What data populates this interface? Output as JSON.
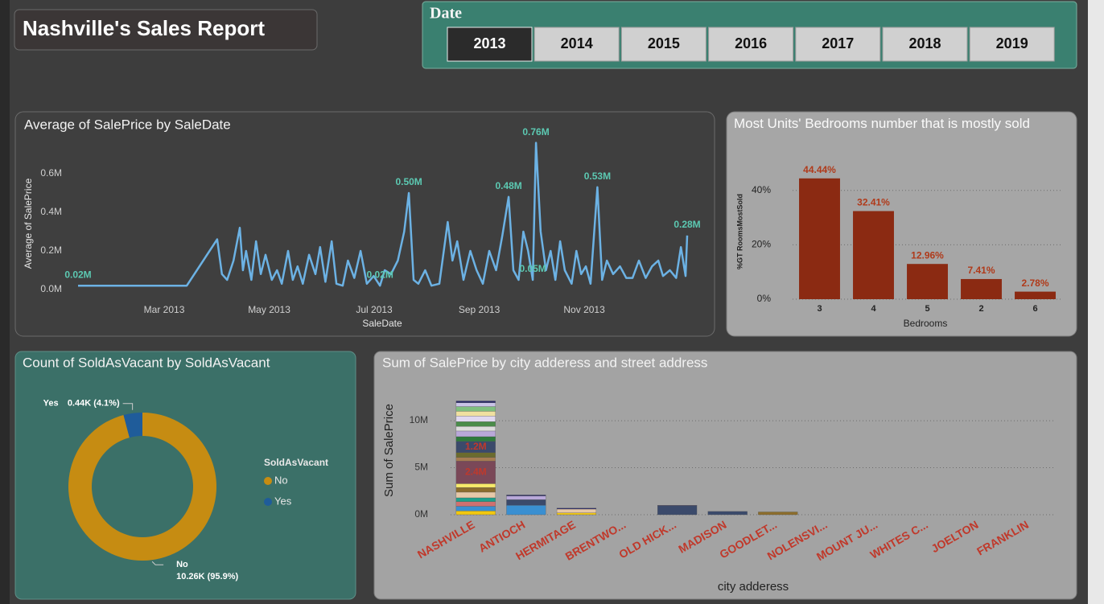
{
  "header": {
    "title": "Nashville's Sales Report"
  },
  "date_slicer": {
    "title": "Date",
    "options": [
      "2013",
      "2014",
      "2015",
      "2016",
      "2017",
      "2018",
      "2019"
    ],
    "selected_index": 0
  },
  "chart_data": [
    {
      "type": "line",
      "title": "Average of SalePrice by SaleDate",
      "x_label": "SaleDate",
      "y_label": "Average of SalePrice",
      "color": "#6cb2e4",
      "label_color": "#5cc9b2",
      "grid": false,
      "x": [
        1.36,
        3.43,
        4.01,
        4.1,
        4.2,
        4.32,
        4.44,
        4.5,
        4.56,
        4.66,
        4.75,
        4.84,
        4.93,
        5.05,
        5.15,
        5.24,
        5.36,
        5.45,
        5.54,
        5.64,
        5.76,
        5.88,
        5.97,
        6.07,
        6.19,
        6.28,
        6.4,
        6.5,
        6.62,
        6.74,
        6.86,
        6.99,
        7.11,
        7.2,
        7.32,
        7.45,
        7.57,
        7.66,
        7.75,
        7.84,
        7.97,
        8.09,
        8.24,
        8.4,
        8.49,
        8.58,
        8.7,
        8.83,
        8.95,
        9.07,
        9.19,
        9.32,
        9.44,
        9.56,
        9.65,
        9.75,
        9.84,
        9.93,
        10.02,
        10.08,
        10.17,
        10.27,
        10.36,
        10.45,
        10.54,
        10.63,
        10.76,
        10.85,
        10.94,
        11.03,
        11.12,
        11.25,
        11.34,
        11.43,
        11.55,
        11.68,
        11.8,
        11.92,
        12.04,
        12.17,
        12.29,
        12.41,
        12.5,
        12.63,
        12.75,
        12.84,
        12.93,
        12.96
      ],
      "values": [
        0.02,
        0.02,
        0.26,
        0.08,
        0.05,
        0.15,
        0.32,
        0.1,
        0.2,
        0.05,
        0.25,
        0.08,
        0.18,
        0.05,
        0.1,
        0.03,
        0.2,
        0.05,
        0.12,
        0.03,
        0.18,
        0.08,
        0.22,
        0.04,
        0.25,
        0.03,
        0.02,
        0.15,
        0.06,
        0.2,
        0.03,
        0.07,
        0.02,
        0.1,
        0.08,
        0.15,
        0.3,
        0.5,
        0.05,
        0.03,
        0.1,
        0.02,
        0.03,
        0.35,
        0.15,
        0.25,
        0.05,
        0.2,
        0.1,
        0.03,
        0.2,
        0.1,
        0.28,
        0.48,
        0.1,
        0.05,
        0.3,
        0.2,
        0.05,
        0.76,
        0.3,
        0.1,
        0.2,
        0.05,
        0.25,
        0.1,
        0.03,
        0.2,
        0.08,
        0.12,
        0.03,
        0.53,
        0.05,
        0.15,
        0.08,
        0.12,
        0.06,
        0.06,
        0.15,
        0.06,
        0.12,
        0.15,
        0.07,
        0.1,
        0.06,
        0.22,
        0.07,
        0.28
      ],
      "value_labels": [
        "0.02M",
        null,
        null,
        null,
        null,
        null,
        null,
        null,
        null,
        null,
        null,
        null,
        null,
        null,
        null,
        null,
        null,
        null,
        null,
        null,
        null,
        null,
        null,
        null,
        null,
        null,
        null,
        null,
        null,
        null,
        null,
        null,
        "0.02M",
        null,
        null,
        null,
        null,
        "0.50M",
        null,
        null,
        null,
        null,
        null,
        null,
        null,
        null,
        null,
        null,
        null,
        null,
        null,
        null,
        null,
        "0.48M",
        null,
        null,
        null,
        null,
        "0.05M",
        "0.76M",
        null,
        null,
        null,
        null,
        null,
        null,
        null,
        null,
        null,
        null,
        null,
        "0.53M",
        null,
        null,
        null,
        null,
        null,
        null,
        null,
        null,
        null,
        null,
        null,
        null,
        null,
        null,
        null,
        "0.28M"
      ],
      "xlim": [
        1.36,
        12.96
      ],
      "xticks": [
        {
          "value": 3,
          "label": "Mar 2013"
        },
        {
          "value": 5,
          "label": "May 2013"
        },
        {
          "value": 7,
          "label": "Jul 2013"
        },
        {
          "value": 9,
          "label": "Sep 2013"
        },
        {
          "value": 11,
          "label": "Nov 2013"
        }
      ],
      "ylim": [
        0,
        0.8
      ],
      "yticks": [
        {
          "value": 0,
          "label": "0.0M"
        },
        {
          "value": 0.2,
          "label": "0.2M"
        },
        {
          "value": 0.4,
          "label": "0.4M"
        },
        {
          "value": 0.6,
          "label": "0.6M"
        }
      ]
    },
    {
      "type": "bar",
      "title": "Most Units' Bedrooms number that is mostly sold",
      "x_label": "Bedrooms",
      "y_label": "%GT RoomsMostSold",
      "color": "#8b2a12",
      "label_color": "#b03a1a",
      "grid": true,
      "categories": [
        "3",
        "4",
        "5",
        "2",
        "6"
      ],
      "values": [
        44.44,
        32.41,
        12.96,
        7.41,
        2.78
      ],
      "value_labels": [
        "44.44%",
        "32.41%",
        "12.96%",
        "7.41%",
        "2.78%"
      ],
      "ylim": [
        0,
        50
      ],
      "yticks": [
        {
          "value": 0,
          "label": "0%"
        },
        {
          "value": 20,
          "label": "20%"
        },
        {
          "value": 40,
          "label": "40%"
        }
      ]
    },
    {
      "type": "donut",
      "title": "Count of SoldAsVacant by SoldAsVacant",
      "legend_title": "SoldAsVacant",
      "categories": [
        "No",
        "Yes"
      ],
      "values": [
        10.26,
        0.44
      ],
      "value_labels": [
        "10.26K (95.9%)",
        "0.44K (4.1%)"
      ],
      "colors": [
        "#c68c12",
        "#1f5c9a"
      ]
    },
    {
      "type": "stacked_bar",
      "title": "Sum of SalePrice by city adderess and street address",
      "x_label": "city adderess",
      "y_label": "Sum of SalePrice",
      "label_color": "#c0392b",
      "grid": true,
      "categories": [
        "NASHVILLE",
        "ANTIOCH",
        "HERMITAGE",
        "BRENTWO...",
        "OLD HICK...",
        "MADISON",
        "GOODLET...",
        "NOLENSVI...",
        "MOUNT JU...",
        "WHITES C...",
        "JOELTON",
        "FRANKLIN"
      ],
      "series": [
        {
          "color": "#f2c80f",
          "values": [
            0.4,
            null,
            0.2,
            null,
            null,
            null,
            null,
            null,
            null,
            null,
            null,
            null
          ]
        },
        {
          "color": "#3a8fd1",
          "values": [
            0.5,
            1.0,
            null,
            null,
            null,
            null,
            null,
            null,
            null,
            null,
            null,
            null
          ]
        },
        {
          "color": "#d07070",
          "values": [
            0.5,
            null,
            null,
            null,
            null,
            null,
            null,
            null,
            null,
            null,
            null,
            null
          ]
        },
        {
          "color": "#1fa08a",
          "values": [
            0.4,
            null,
            null,
            null,
            null,
            null,
            null,
            null,
            null,
            null,
            null,
            null
          ]
        },
        {
          "color": "#e6c8a8",
          "values": [
            0.6,
            null,
            0.4,
            null,
            null,
            null,
            null,
            null,
            null,
            null,
            null,
            null
          ]
        },
        {
          "color": "#8c6d2c",
          "values": [
            0.5,
            null,
            null,
            null,
            null,
            null,
            0.3,
            null,
            null,
            null,
            null,
            null
          ]
        },
        {
          "color": "#f7ea6a",
          "values": [
            0.4,
            null,
            null,
            null,
            null,
            null,
            null,
            null,
            null,
            null,
            null,
            null
          ]
        },
        {
          "color": "#7a4858",
          "values": [
            2.4,
            null,
            null,
            null,
            null,
            null,
            null,
            null,
            null,
            null,
            null,
            null
          ],
          "value_labels": [
            "2.4M",
            null,
            null,
            null,
            null,
            null,
            null,
            null,
            null,
            null,
            null,
            null
          ]
        },
        {
          "color": "#a67c52",
          "values": [
            0.4,
            null,
            null,
            null,
            null,
            null,
            null,
            null,
            null,
            null,
            null,
            null
          ]
        },
        {
          "color": "#6b6b2e",
          "values": [
            0.5,
            null,
            null,
            null,
            null,
            null,
            null,
            null,
            null,
            null,
            null,
            null
          ]
        },
        {
          "color": "#3b4a6b",
          "values": [
            1.2,
            0.6,
            null,
            null,
            0.95,
            0.35,
            null,
            null,
            null,
            null,
            null,
            null
          ],
          "value_labels": [
            "1.2M",
            null,
            null,
            null,
            null,
            null,
            null,
            null,
            null,
            null,
            null,
            null
          ]
        },
        {
          "color": "#2e7a3c",
          "values": [
            0.5,
            null,
            null,
            null,
            null,
            null,
            null,
            null,
            null,
            null,
            null,
            null
          ]
        },
        {
          "color": "#b9a8d9",
          "values": [
            0.6,
            0.4,
            null,
            null,
            null,
            null,
            null,
            null,
            null,
            null,
            null,
            null
          ]
        },
        {
          "color": "#dcdcdc",
          "values": [
            0.5,
            null,
            null,
            null,
            null,
            null,
            null,
            null,
            null,
            null,
            null,
            null
          ]
        },
        {
          "color": "#4a8c4a",
          "values": [
            0.5,
            null,
            null,
            null,
            null,
            null,
            null,
            null,
            null,
            null,
            null,
            null
          ]
        },
        {
          "color": "#e0d8f0",
          "values": [
            0.6,
            null,
            null,
            null,
            null,
            null,
            null,
            null,
            null,
            null,
            null,
            null
          ]
        },
        {
          "color": "#f0e0a0",
          "values": [
            0.5,
            null,
            null,
            null,
            null,
            null,
            null,
            null,
            null,
            null,
            null,
            null
          ]
        },
        {
          "color": "#7fbf7f",
          "values": [
            0.5,
            null,
            null,
            null,
            null,
            null,
            null,
            null,
            null,
            null,
            null,
            null
          ]
        },
        {
          "color": "#c9c3e6",
          "values": [
            0.4,
            null,
            null,
            null,
            null,
            null,
            null,
            null,
            null,
            null,
            null,
            null
          ]
        },
        {
          "color": "#2b2b6b",
          "values": [
            0.2,
            0.1,
            0.1,
            null,
            0.05,
            null,
            null,
            null,
            null,
            null,
            null,
            null
          ]
        }
      ],
      "ylim": [
        0,
        13
      ],
      "yticks": [
        {
          "value": 0,
          "label": "0M"
        },
        {
          "value": 5,
          "label": "5M"
        },
        {
          "value": 10,
          "label": "10M"
        }
      ]
    }
  ]
}
